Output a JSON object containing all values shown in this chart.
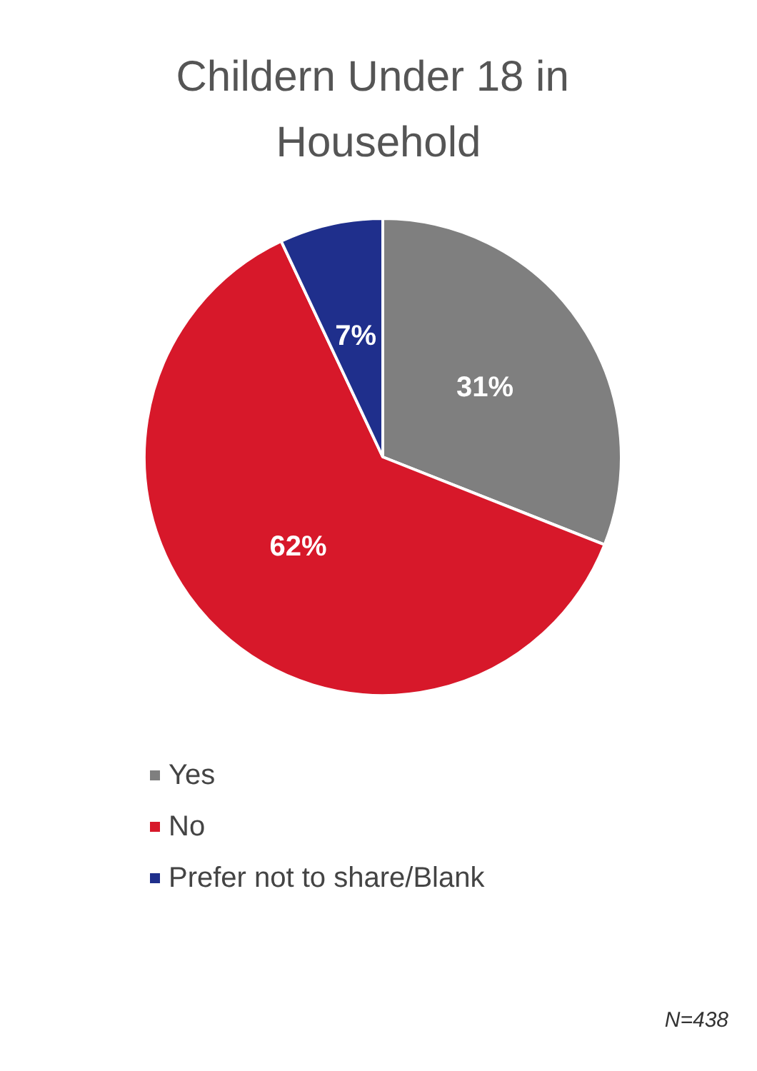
{
  "chart_data": {
    "type": "pie",
    "title": "Childern Under 18 in Household",
    "categories": [
      "Yes",
      "No",
      "Prefer not to share/Blank"
    ],
    "values": [
      31,
      62,
      7
    ],
    "colors": [
      "#7f7f7f",
      "#d7182a",
      "#1f2f8c"
    ],
    "value_labels": [
      "31%",
      "62%",
      "7%"
    ],
    "legend": "bottom",
    "annotations": [
      "N=438"
    ]
  }
}
